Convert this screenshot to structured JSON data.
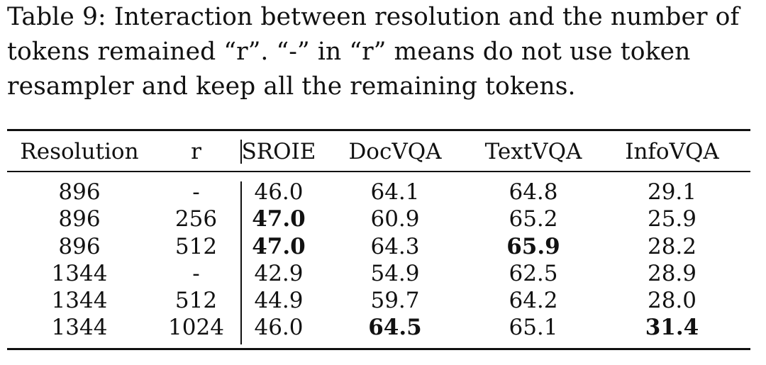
{
  "caption": {
    "lines": [
      "Table 9: Interaction between resolution and the number of",
      "tokens remained “r”. “-” in “r” means do not use token",
      "resampler and keep all the remaining tokens."
    ]
  },
  "table": {
    "headers": [
      "Resolution",
      "r",
      "SROIE",
      "DocVQA",
      "TextVQA",
      "InfoVQA"
    ],
    "rows": [
      {
        "cells": [
          "896",
          "-",
          "46.0",
          "64.1",
          "64.8",
          "29.1"
        ],
        "bold": []
      },
      {
        "cells": [
          "896",
          "256",
          "47.0",
          "60.9",
          "65.2",
          "25.9"
        ],
        "bold": [
          2
        ]
      },
      {
        "cells": [
          "896",
          "512",
          "47.0",
          "64.3",
          "65.9",
          "28.2"
        ],
        "bold": [
          2,
          4
        ]
      },
      {
        "cells": [
          "1344",
          "-",
          "42.9",
          "54.9",
          "62.5",
          "28.9"
        ],
        "bold": []
      },
      {
        "cells": [
          "1344",
          "512",
          "44.9",
          "59.7",
          "64.2",
          "28.0"
        ],
        "bold": []
      },
      {
        "cells": [
          "1344",
          "1024",
          "46.0",
          "64.5",
          "65.1",
          "31.4"
        ],
        "bold": [
          3,
          5
        ]
      }
    ]
  }
}
